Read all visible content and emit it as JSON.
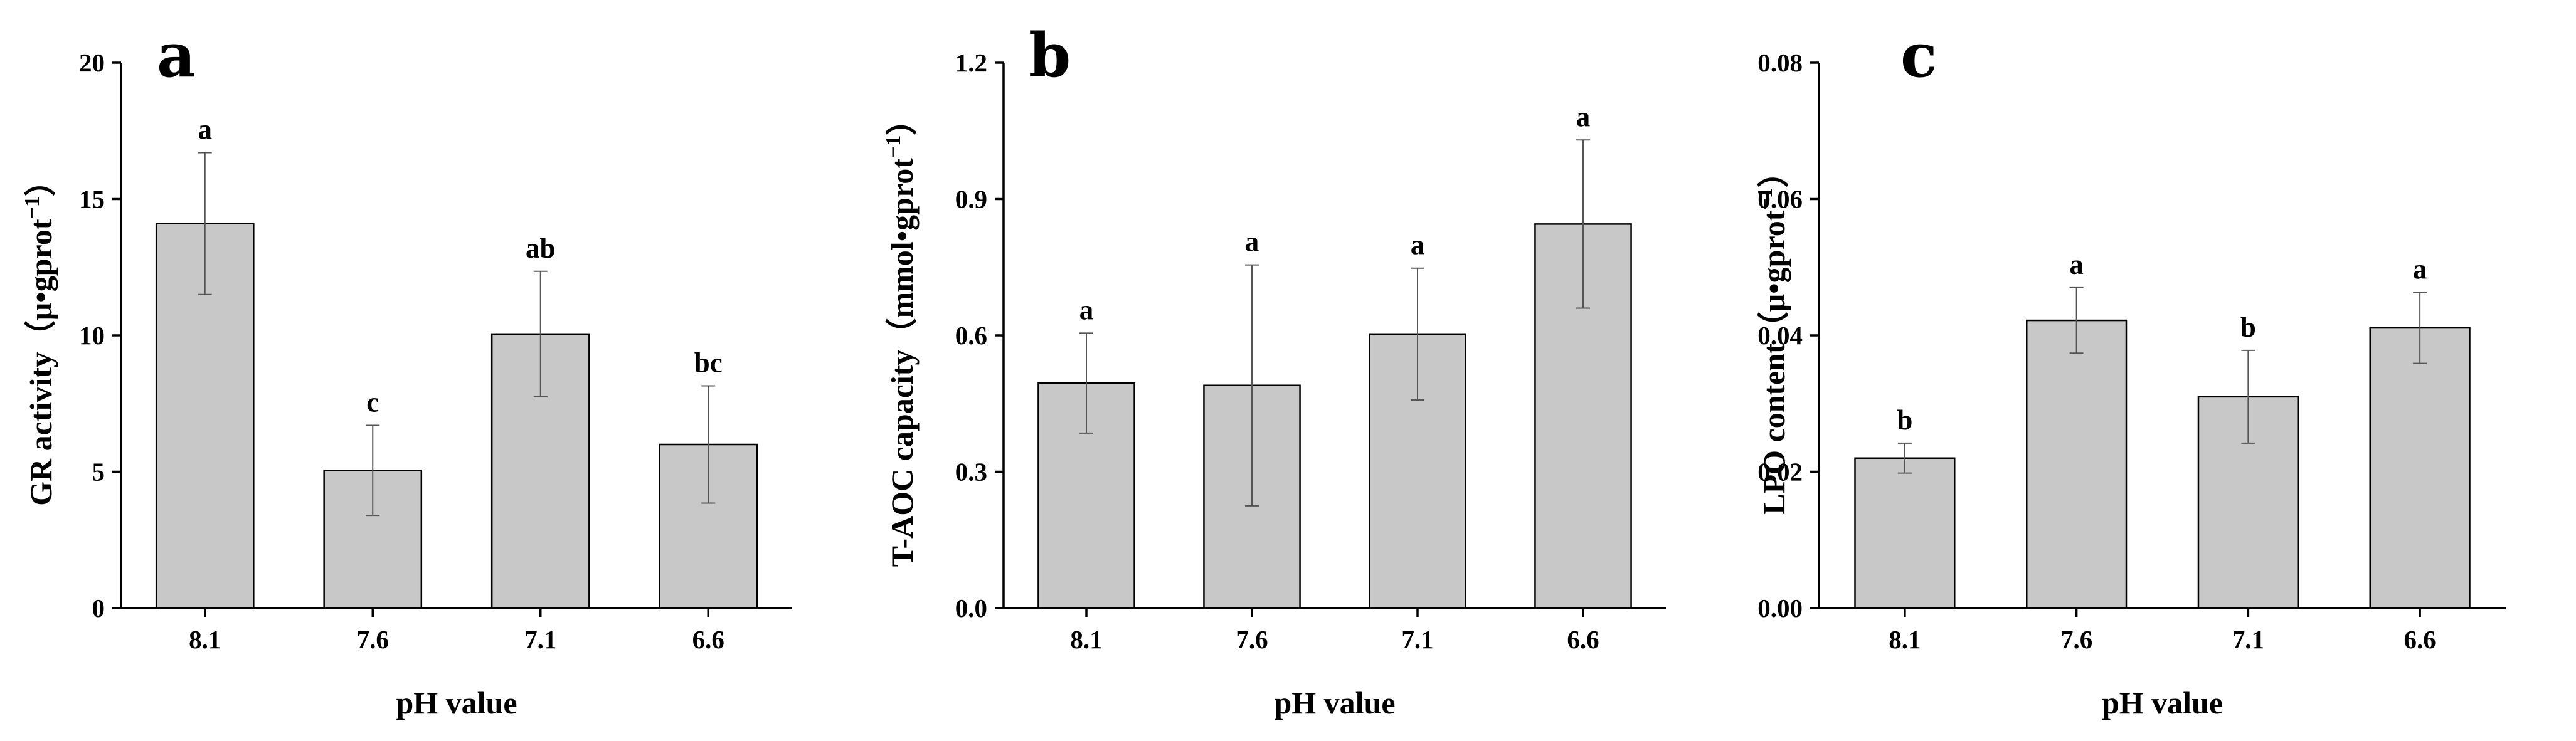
{
  "chart_data": [
    {
      "type": "bar",
      "panel_label": "a",
      "categories": [
        "8.1",
        "7.6",
        "7.1",
        "6.6"
      ],
      "values": [
        14.1,
        5.05,
        10.05,
        6.0
      ],
      "errors": [
        2.6,
        1.65,
        2.3,
        2.15
      ],
      "significance": [
        "a",
        "c",
        "ab",
        "bc"
      ],
      "xlabel": "pH value",
      "ylabel_main": "GR activity（μ•gprot",
      "ylabel_sup": "−1",
      "ylabel_close": "）",
      "ylim": [
        0,
        20
      ],
      "yticks": [
        0,
        5,
        10,
        15,
        20
      ],
      "ytick_labels": [
        "0",
        "5",
        "10",
        "15",
        "20"
      ]
    },
    {
      "type": "bar",
      "panel_label": "b",
      "categories": [
        "8.1",
        "7.6",
        "7.1",
        "6.6"
      ],
      "values": [
        0.495,
        0.49,
        0.603,
        0.845
      ],
      "errors": [
        0.11,
        0.265,
        0.145,
        0.185
      ],
      "significance": [
        "a",
        "a",
        "a",
        "a"
      ],
      "xlabel": "pH value",
      "ylabel_main": "T-AOC capacity（mmol•gprot",
      "ylabel_sup": "−1",
      "ylabel_close": "）",
      "ylim": [
        0,
        1.2
      ],
      "yticks": [
        0,
        0.3,
        0.6,
        0.9,
        1.2
      ],
      "ytick_labels": [
        "0.0",
        "0.3",
        "0.6",
        "0.9",
        "1.2"
      ]
    },
    {
      "type": "bar",
      "panel_label": "c",
      "categories": [
        "8.1",
        "7.6",
        "7.1",
        "6.6"
      ],
      "values": [
        0.022,
        0.0422,
        0.031,
        0.0411
      ],
      "errors": [
        0.0022,
        0.0048,
        0.0068,
        0.0052
      ],
      "significance": [
        "b",
        "a",
        "b",
        "a"
      ],
      "xlabel": "pH value",
      "ylabel_main": "LPO content（μ•gprot",
      "ylabel_sup": "−1",
      "ylabel_close": "）",
      "ylim": [
        0,
        0.08
      ],
      "yticks": [
        0,
        0.02,
        0.04,
        0.06,
        0.08
      ],
      "ytick_labels": [
        "0.00",
        "0.02",
        "0.04",
        "0.06",
        "0.08"
      ]
    }
  ]
}
